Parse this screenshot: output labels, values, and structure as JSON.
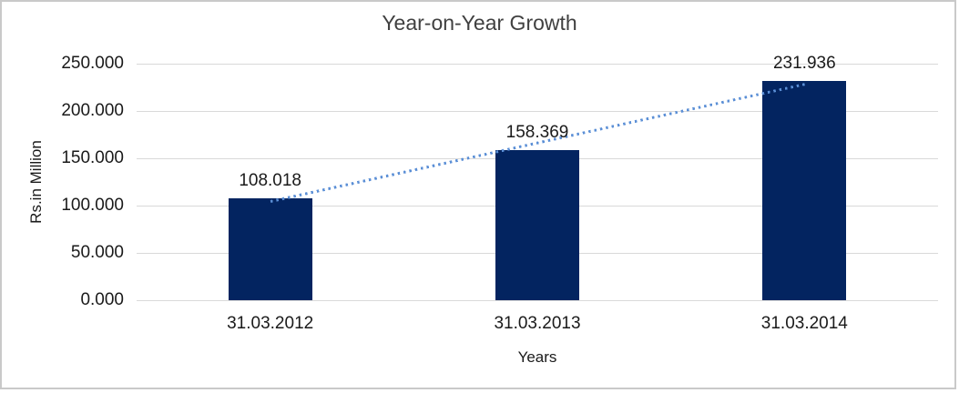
{
  "chart_data": {
    "type": "bar",
    "title": "Year-on-Year Growth",
    "xlabel": "Years",
    "ylabel": "Rs.in Million",
    "categories": [
      "31.03.2012",
      "31.03.2013",
      "31.03.2014"
    ],
    "series": [
      {
        "name": "Year-on-Year Growth",
        "values": [
          108.018,
          158.369,
          231.936
        ]
      }
    ],
    "data_labels": [
      "108.018",
      "158.369",
      "231.936"
    ],
    "yticks": [
      "0.000",
      "50.000",
      "100.000",
      "150.000",
      "200.000",
      "250.000"
    ],
    "ylim": [
      0,
      250
    ],
    "grid": "horizontal",
    "legend_position": "none",
    "trendline": {
      "type": "linear",
      "style": "dotted"
    },
    "colors": {
      "bar": "#032460",
      "trendline": "#5b8fd6",
      "gridline": "#d9d9d9",
      "frame_border": "#c9c9c9",
      "title_text": "#404040",
      "text": "#1a1a1a",
      "background": "#ffffff"
    }
  }
}
